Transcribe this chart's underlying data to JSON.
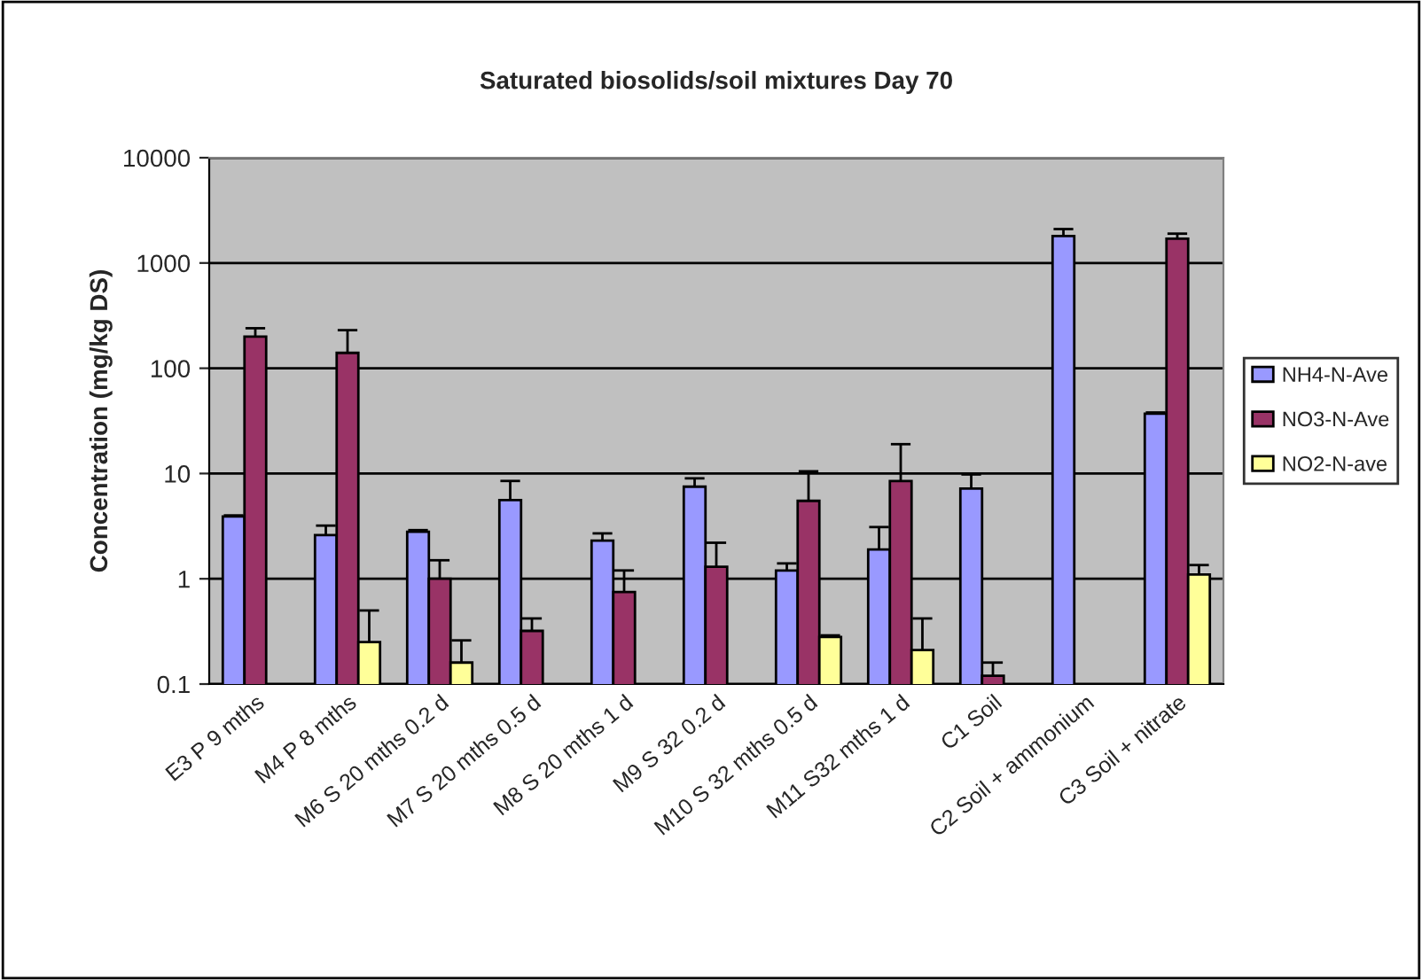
{
  "chart_data": {
    "type": "bar",
    "title": "Saturated biosolids/soil mixtures Day 70",
    "ylabel": "Concentration (mg/kg DS)",
    "categories": [
      "E3 P 9 mths",
      "M4 P 8 mths",
      "M6 S 20 mths 0.2 d",
      "M7 S 20 mths 0.5 d",
      "M8 S 20 mths 1 d",
      "M9 S 32 0.2 d",
      "M10 S 32 mths 0.5 d",
      "M11 S32 mths 1 d",
      "C1 Soil",
      "C2 Soil + ammonium",
      "C3 Soil + nitrate"
    ],
    "series": [
      {
        "name": "NH4-N-Ave",
        "color": "#9999ff",
        "values": [
          3.9,
          2.6,
          2.8,
          5.6,
          2.3,
          7.5,
          1.2,
          1.9,
          7.2,
          1800,
          37
        ],
        "errors": [
          [
            3.9,
            4.0
          ],
          [
            2.6,
            3.2
          ],
          [
            2.8,
            2.9
          ],
          [
            5.6,
            8.5
          ],
          [
            2.3,
            2.7
          ],
          [
            7.5,
            9
          ],
          [
            1.2,
            1.4
          ],
          [
            1.9,
            3.1
          ],
          [
            7.2,
            9.8
          ],
          [
            1800,
            2100
          ],
          [
            37,
            38
          ]
        ]
      },
      {
        "name": "NO3-N-Ave",
        "color": "#993366",
        "values": [
          200,
          140,
          1.0,
          0.32,
          0.75,
          1.3,
          5.5,
          8.5,
          0.12,
          null,
          1700
        ],
        "errors": [
          [
            200,
            240
          ],
          [
            140,
            230
          ],
          [
            1.0,
            1.5
          ],
          [
            0.32,
            0.42
          ],
          [
            0.75,
            1.2
          ],
          [
            1.3,
            2.2
          ],
          [
            5.5,
            10.5
          ],
          [
            8.5,
            19
          ],
          [
            0.12,
            0.16
          ],
          null,
          [
            1700,
            1900
          ]
        ]
      },
      {
        "name": "NO2-N-ave",
        "color": "#ffff99",
        "values": [
          null,
          0.25,
          0.16,
          null,
          null,
          null,
          0.28,
          0.21,
          null,
          null,
          1.1
        ],
        "errors": [
          null,
          [
            0.25,
            0.5
          ],
          [
            0.16,
            0.26
          ],
          null,
          null,
          null,
          [
            0.28,
            0.29
          ],
          [
            0.21,
            0.42
          ],
          null,
          null,
          [
            1.1,
            1.35
          ]
        ]
      }
    ],
    "log": true,
    "ylim": [
      0.1,
      10000
    ],
    "yticks": [
      0.1,
      1,
      10,
      100,
      1000,
      10000
    ],
    "grid": "y",
    "legend": "right"
  }
}
